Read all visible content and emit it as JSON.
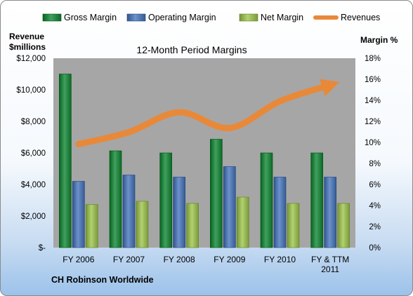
{
  "chart_data": {
    "type": "bar",
    "title": "12-Month Period Margins",
    "company": "CH Robinson Worldwide",
    "left_axis_label": [
      "Revenue",
      "$millions"
    ],
    "right_axis_label": "Margin %",
    "categories": [
      [
        "FY 2006"
      ],
      [
        "FY 2007"
      ],
      [
        "FY 2008"
      ],
      [
        "FY 2009"
      ],
      [
        "FY 2010"
      ],
      [
        "FY & TTM",
        "2011"
      ]
    ],
    "left_axis": {
      "min": 0,
      "max": 12000,
      "step": 2000,
      "tick_labels": [
        "$-",
        "$2,000",
        "$4,000",
        "$6,000",
        "$8,000",
        "$10,000",
        "$12,000"
      ]
    },
    "right_axis": {
      "min": 0,
      "max": 18,
      "step": 2,
      "tick_labels": [
        "0%",
        "2%",
        "4%",
        "6%",
        "8%",
        "10%",
        "12%",
        "14%",
        "16%",
        "18%"
      ]
    },
    "series": [
      {
        "name": "Gross Margin",
        "axis": "right",
        "color": "#1e7d3a",
        "values": [
          16.5,
          9.2,
          9.0,
          10.3,
          9.0,
          9.0
        ]
      },
      {
        "name": "Operating Margin",
        "axis": "right",
        "color": "#4a6fa8",
        "values": [
          6.3,
          6.9,
          6.7,
          7.7,
          6.7,
          6.7
        ]
      },
      {
        "name": "Net Margin",
        "axis": "right",
        "color": "#8fae4e",
        "values": [
          4.1,
          4.4,
          4.2,
          4.8,
          4.2,
          4.2
        ]
      },
      {
        "name": "Revenues",
        "axis": "left",
        "type": "line",
        "color": "#e8893a",
        "values": [
          6556,
          7316,
          8579,
          7577,
          9274,
          10300
        ]
      }
    ],
    "legend_position": "top",
    "grid": false
  }
}
